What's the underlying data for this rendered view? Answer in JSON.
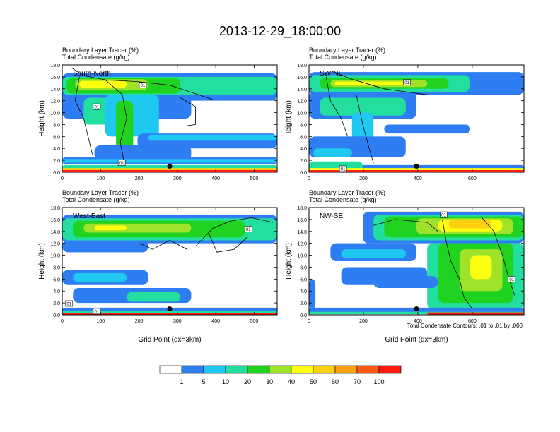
{
  "figure": {
    "title": "2013-12-29_18:00:00",
    "contour_note": "Total Condensate Contours: .01 to .01 by .000",
    "colorbar": {
      "colors": [
        "#ffffff",
        "#2f7df3",
        "#1ec8f0",
        "#22dfa0",
        "#21d321",
        "#9ee32a",
        "#ffff12",
        "#ffcf12",
        "#ffa012",
        "#ff5a12",
        "#ff1a12"
      ],
      "labels": [
        "1",
        "5",
        "10",
        "20",
        "30",
        "40",
        "50",
        "60",
        "70",
        "100"
      ]
    }
  },
  "chart_data": [
    {
      "type": "heatmap",
      "panel_label": "South-North",
      "title_line1": "Boundary Layer Tracer   (%)",
      "title_line2": "Total Condensate   (g/kg)",
      "ylabel": "Height (km)",
      "xlabel": "",
      "xlim": [
        0,
        560
      ],
      "ylim": [
        0,
        18
      ],
      "xticks": [
        0,
        100,
        200,
        300,
        400,
        500
      ],
      "yticks": [
        "0.0",
        "2.0",
        "4.0",
        "6.0",
        "8.0",
        "10.0",
        "12.0",
        "14.0",
        "16.0",
        "18.0"
      ],
      "marker": {
        "x": 280,
        "y": 1.0
      },
      "contour_labels": [
        {
          "text": "01",
          "x": 210,
          "y": 14.6
        },
        {
          "text": "01",
          "x": 90,
          "y": 11.0
        },
        {
          "text": "01",
          "x": 155,
          "y": 1.6
        }
      ]
    },
    {
      "type": "heatmap",
      "panel_label": "SW-NE",
      "title_line1": "Boundary Layer Tracer   (%)",
      "title_line2": "Total Condensate   (g/kg)",
      "ylabel": "Height (km)",
      "xlabel": "",
      "xlim": [
        0,
        790
      ],
      "ylim": [
        0,
        18
      ],
      "xticks": [
        0,
        200,
        400,
        600
      ],
      "yticks": [
        "0.0",
        "2.0",
        "4.0",
        "6.0",
        "8.0",
        "10.0",
        "12.0",
        "14.0",
        "16.0",
        "18.0"
      ],
      "marker": {
        "x": 395,
        "y": 1.0
      },
      "contour_labels": [
        {
          "text": "01",
          "x": 360,
          "y": 15.1
        },
        {
          "text": "01",
          "x": 125,
          "y": 0.6
        }
      ]
    },
    {
      "type": "heatmap",
      "panel_label": "West-East",
      "title_line1": "Boundary Layer Tracer   (%)",
      "title_line2": "Total Condensate   (g/kg)",
      "ylabel": "Height (km)",
      "xlabel": "Grid Point (dx=3km)",
      "xlim": [
        0,
        560
      ],
      "ylim": [
        0,
        18
      ],
      "xticks": [
        0,
        100,
        200,
        300,
        400,
        500
      ],
      "yticks": [
        "0.0",
        "2.0",
        "4.0",
        "6.0",
        "8.0",
        "10.0",
        "12.0",
        "14.0",
        "16.0",
        "18.0"
      ],
      "marker": {
        "x": 280,
        "y": 1.0
      },
      "contour_labels": [
        {
          "text": "01",
          "x": 485,
          "y": 14.4
        },
        {
          "text": "01",
          "x": 18,
          "y": 1.9
        },
        {
          "text": "01",
          "x": 90,
          "y": 0.6
        }
      ]
    },
    {
      "type": "heatmap",
      "panel_label": "NW-SE",
      "title_line1": "Boundary Layer Tracer   (%)",
      "title_line2": "Total Condensate   (g/kg)",
      "ylabel": "Height (km)",
      "xlabel": "Grid Point (dx=3km)",
      "xlim": [
        0,
        790
      ],
      "ylim": [
        0,
        18
      ],
      "xticks": [
        0,
        200,
        400,
        600
      ],
      "yticks": [
        "0.0",
        "2.0",
        "4.0",
        "6.0",
        "8.0",
        "10.0",
        "12.0",
        "14.0",
        "16.0",
        "18.0"
      ],
      "marker": {
        "x": 395,
        "y": 1.0
      },
      "contour_labels": [
        {
          "text": "01",
          "x": 495,
          "y": 16.8
        },
        {
          "text": "01",
          "x": 745,
          "y": 6.0
        }
      ]
    }
  ]
}
